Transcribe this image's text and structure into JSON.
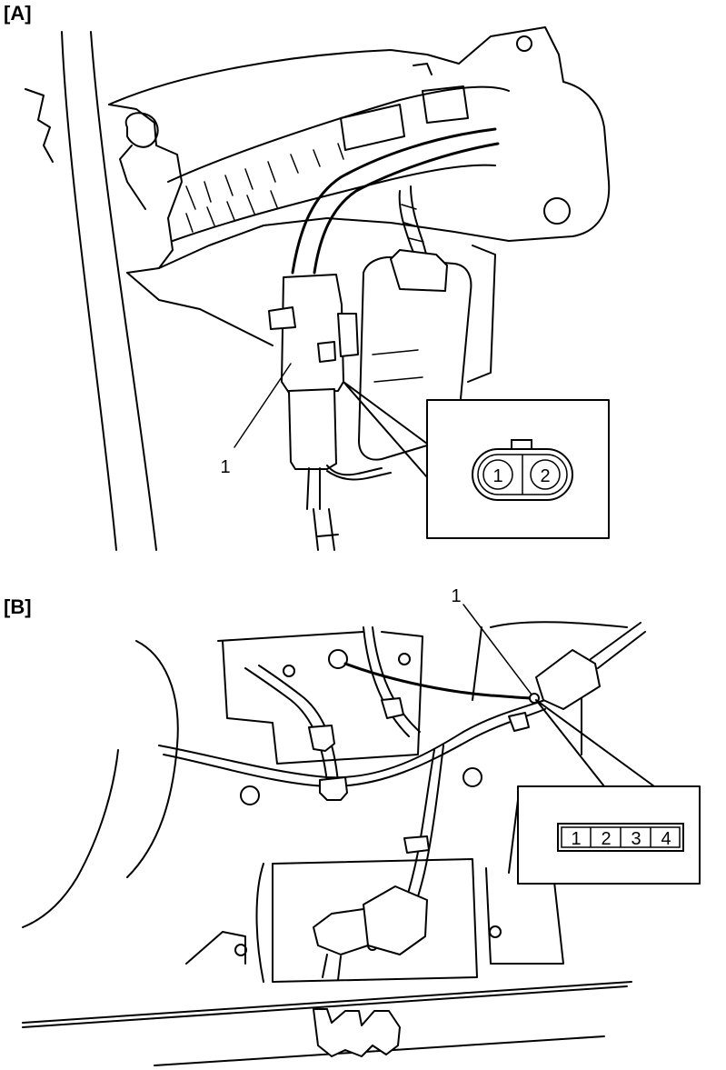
{
  "panel_a": {
    "label": "[A]",
    "callout": "1",
    "connector_pins": [
      "1",
      "2"
    ]
  },
  "panel_b": {
    "label": "[B]",
    "callout": "1",
    "connector_pins": [
      "1",
      "2",
      "3",
      "4"
    ]
  }
}
